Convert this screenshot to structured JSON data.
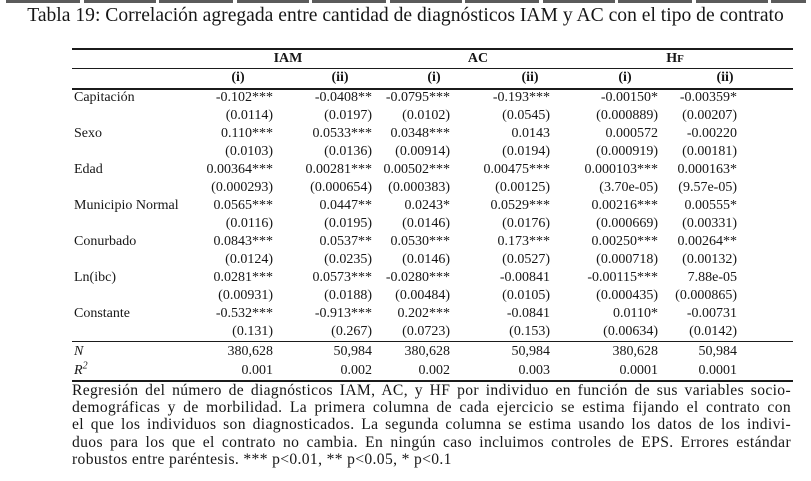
{
  "title": "Tabla 19: Correlación agregada entre cantidad de diagnósticos IAM y AC con el tipo de contrato",
  "table": {
    "groups": [
      {
        "label": "IAM"
      },
      {
        "label": "AC"
      },
      {
        "label": "HF",
        "smallcaps": true
      }
    ],
    "col_headers": [
      "(i)",
      "(ii)",
      "(i)",
      "(ii)",
      "(i)",
      "(ii)"
    ],
    "rows": [
      {
        "label": "Capitación",
        "coefs": [
          "-0.102***",
          "-0.0408**",
          "-0.0795***",
          "-0.193***",
          "-0.00150*",
          "-0.00359*"
        ],
        "ses": [
          "(0.0114)",
          "(0.0197)",
          "(0.0102)",
          "(0.0545)",
          "(0.000889)",
          "(0.00207)"
        ]
      },
      {
        "label": "Sexo",
        "coefs": [
          "0.110***",
          "0.0533***",
          "0.0348***",
          "0.0143",
          "0.000572",
          "-0.00220"
        ],
        "ses": [
          "(0.0103)",
          "(0.0136)",
          "(0.00914)",
          "(0.0194)",
          "(0.000919)",
          "(0.00181)"
        ]
      },
      {
        "label": "Edad",
        "coefs": [
          "0.00364***",
          "0.00281***",
          "0.00502***",
          "0.00475***",
          "0.000103***",
          "0.000163*"
        ],
        "ses": [
          "(0.000293)",
          "(0.000654)",
          "(0.000383)",
          "(0.00125)",
          "(3.70e-05)",
          "(9.57e-05)"
        ]
      },
      {
        "label": "Municipio Normal",
        "coefs": [
          "0.0565***",
          "0.0447**",
          "0.0243*",
          "0.0529***",
          "0.00216***",
          "0.00555*"
        ],
        "ses": [
          "(0.0116)",
          "(0.0195)",
          "(0.0146)",
          "(0.0176)",
          "(0.000669)",
          "(0.00331)"
        ]
      },
      {
        "label": "Conurbado",
        "coefs": [
          "0.0843***",
          "0.0537**",
          "0.0530***",
          "0.173***",
          "0.00250***",
          "0.00264**"
        ],
        "ses": [
          "(0.0124)",
          "(0.0235)",
          "(0.0146)",
          "(0.0527)",
          "(0.000718)",
          "(0.00132)"
        ]
      },
      {
        "label": "Ln(ibc)",
        "coefs": [
          "0.0281***",
          "0.0573***",
          "-0.0280***",
          "-0.00841",
          "-0.00115***",
          "7.88e-05"
        ],
        "ses": [
          "(0.00931)",
          "(0.0188)",
          "(0.00484)",
          "(0.0105)",
          "(0.000435)",
          "(0.000865)"
        ]
      },
      {
        "label": "Constante",
        "coefs": [
          "-0.532***",
          "-0.913***",
          "0.202***",
          "-0.0841",
          "0.0110*",
          "-0.00731"
        ],
        "ses": [
          "(0.131)",
          "(0.267)",
          "(0.0723)",
          "(0.153)",
          "(0.00634)",
          "(0.0142)"
        ]
      }
    ],
    "stats": [
      {
        "label": "N",
        "italic": true,
        "values": [
          "380,628",
          "50,984",
          "380,628",
          "50,984",
          "380,628",
          "50,984"
        ]
      },
      {
        "label": "R",
        "sup": "2",
        "italic": true,
        "values": [
          "0.001",
          "0.002",
          "0.002",
          "0.003",
          "0.0001",
          "0.0001"
        ]
      }
    ]
  },
  "footnote_lines": [
    "Regresión del número de diagnósticos IAM, AC, y HF por individuo en función de sus variables socio-",
    "demográficas y de morbilidad. La primera columna de cada ejercicio se estima fijando el contrato con",
    "el que los individuos son diagnosticados. La segunda columna se estima usando los datos de los indivi-",
    "duos para los que el contrato no cambia. En ningún caso incluimos controles de EPS. Errores estándar",
    "robustos entre paréntesis. *** p<0.01, ** p<0.05, * p<0.1"
  ]
}
